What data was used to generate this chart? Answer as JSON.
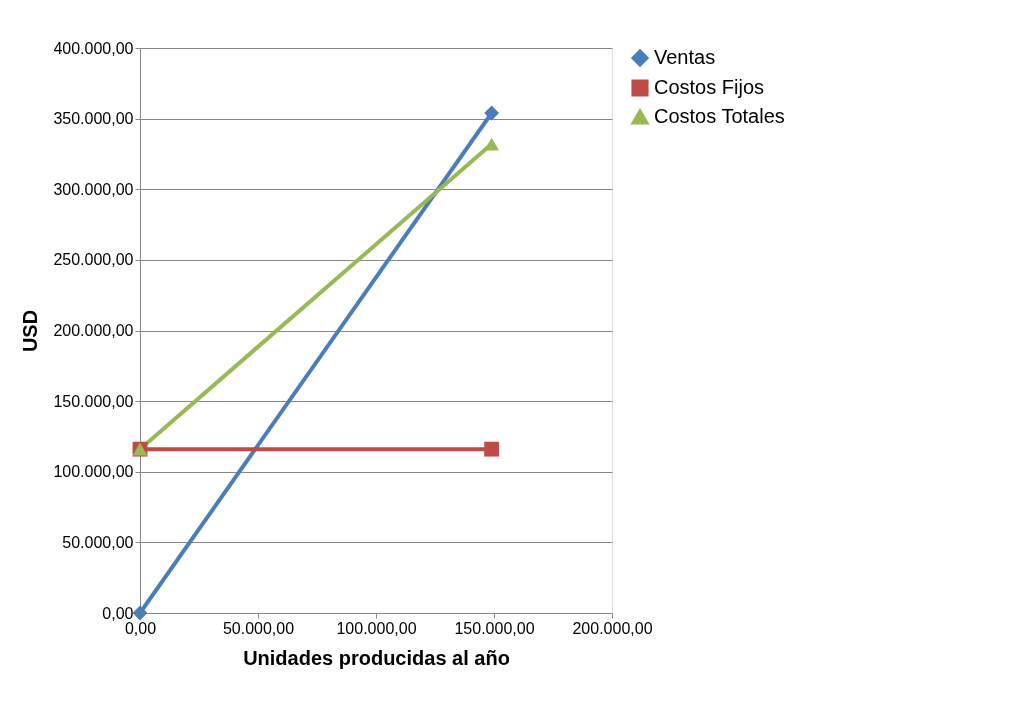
{
  "chart_data": {
    "type": "line",
    "xlabel": "Unidades producidas al año",
    "ylabel": "USD",
    "x": [
      0,
      149000
    ],
    "series": [
      {
        "name": "Ventas",
        "color": "#4a7ebb",
        "marker": "diamond",
        "values": [
          0,
          354000
        ]
      },
      {
        "name": "Costos Fijos",
        "color": "#be4b48",
        "marker": "square",
        "values": [
          116000,
          116000
        ]
      },
      {
        "name": "Costos Totales",
        "color": "#98b954",
        "marker": "triangle",
        "values": [
          116000,
          332000
        ]
      }
    ],
    "xlim": [
      0,
      200000
    ],
    "xticks": [
      {
        "value": 0,
        "label": "0,00"
      },
      {
        "value": 50000,
        "label": "50.000,00"
      },
      {
        "value": 100000,
        "label": "100.000,00"
      },
      {
        "value": 150000,
        "label": "150.000,00"
      },
      {
        "value": 200000,
        "label": "200.000,00"
      }
    ],
    "ylim": [
      0,
      400000
    ],
    "yticks": [
      {
        "value": 0,
        "label": "0,00"
      },
      {
        "value": 50000,
        "label": "50.000,00"
      },
      {
        "value": 100000,
        "label": "100.000,00"
      },
      {
        "value": 150000,
        "label": "150.000,00"
      },
      {
        "value": 200000,
        "label": "200.000,00"
      },
      {
        "value": 250000,
        "label": "250.000,00"
      },
      {
        "value": 300000,
        "label": "300.000,00"
      },
      {
        "value": 350000,
        "label": "350.000,00"
      },
      {
        "value": 400000,
        "label": "400.000,00"
      }
    ],
    "grid": "y",
    "legend": "right",
    "line_style": "solid"
  }
}
